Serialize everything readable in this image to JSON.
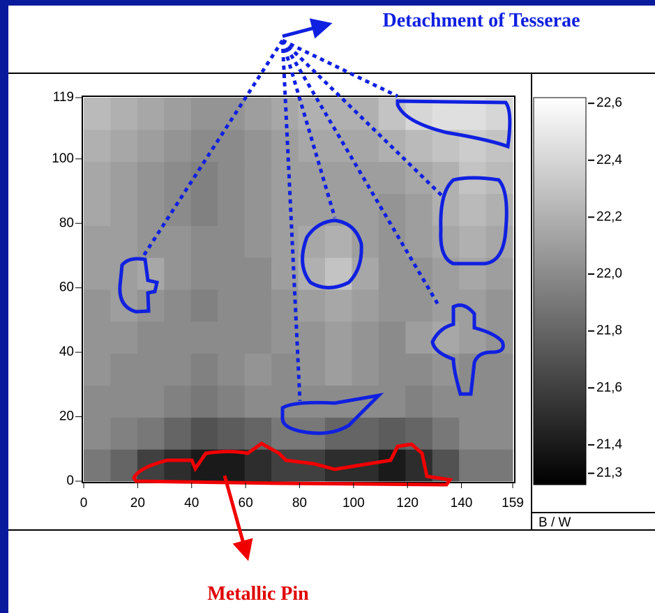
{
  "chart_data": {
    "type": "heatmap",
    "annotations": [
      "Detachment of Tesserae",
      "Metallic Pin"
    ],
    "xlim": [
      0,
      159
    ],
    "xticks": [
      0,
      20,
      40,
      60,
      80,
      100,
      120,
      140,
      159
    ],
    "ylim": [
      0,
      119
    ],
    "yticks": [
      0,
      20,
      40,
      60,
      80,
      100,
      119
    ],
    "colorbar_label": "B / W",
    "clim": [
      21.26,
      22.62
    ],
    "cticks": [
      {
        "value": 22.6,
        "label": "22,6"
      },
      {
        "value": 22.4,
        "label": "22,4"
      },
      {
        "value": 22.2,
        "label": "22,2"
      },
      {
        "value": 22.0,
        "label": "22,0"
      },
      {
        "value": 21.8,
        "label": "21,8"
      },
      {
        "value": 21.6,
        "label": "21,6"
      },
      {
        "value": 21.4,
        "label": "21,4"
      },
      {
        "value": 21.3,
        "label": "21,3"
      }
    ],
    "z": [
      [
        21.9,
        21.8,
        21.6,
        21.5,
        21.4,
        21.4,
        21.5,
        21.6,
        21.6,
        21.5,
        21.5,
        21.4,
        21.5,
        21.7,
        21.9,
        21.9
      ],
      [
        22.0,
        21.95,
        21.9,
        21.8,
        21.7,
        21.75,
        21.8,
        21.9,
        21.9,
        21.8,
        21.8,
        21.75,
        21.8,
        21.9,
        22.0,
        22.0
      ],
      [
        22.0,
        22.0,
        22.0,
        21.95,
        21.9,
        21.95,
        22.0,
        22.0,
        22.0,
        22.0,
        22.0,
        22.0,
        21.95,
        22.0,
        22.0,
        22.0
      ],
      [
        22.05,
        22.0,
        22.0,
        22.0,
        21.95,
        22.0,
        22.05,
        22.0,
        22.05,
        22.1,
        22.05,
        22.0,
        22.0,
        22.05,
        22.0,
        22.0
      ],
      [
        22.05,
        22.05,
        22.0,
        22.0,
        22.0,
        22.0,
        22.0,
        22.05,
        22.05,
        22.1,
        22.05,
        22.0,
        22.1,
        22.15,
        22.1,
        22.05
      ],
      [
        22.05,
        22.1,
        22.05,
        22.0,
        21.95,
        22.0,
        22.0,
        22.05,
        22.1,
        22.15,
        22.1,
        22.05,
        22.05,
        22.1,
        22.1,
        22.05
      ],
      [
        22.1,
        22.1,
        22.15,
        22.05,
        22.0,
        22.0,
        22.0,
        22.1,
        22.2,
        22.3,
        22.15,
        22.05,
        22.05,
        22.1,
        22.15,
        22.1
      ],
      [
        22.1,
        22.1,
        22.05,
        22.05,
        22.0,
        22.0,
        22.05,
        22.1,
        22.15,
        22.2,
        22.1,
        22.05,
        22.1,
        22.15,
        22.2,
        22.15
      ],
      [
        22.15,
        22.1,
        22.05,
        22.0,
        21.95,
        22.0,
        22.05,
        22.1,
        22.1,
        22.1,
        22.1,
        22.05,
        22.1,
        22.2,
        22.25,
        22.2
      ],
      [
        22.15,
        22.1,
        22.05,
        22.0,
        21.95,
        22.0,
        22.05,
        22.1,
        22.1,
        22.1,
        22.1,
        22.1,
        22.15,
        22.2,
        22.3,
        22.25
      ],
      [
        22.2,
        22.15,
        22.1,
        22.05,
        22.0,
        22.0,
        22.05,
        22.1,
        22.15,
        22.15,
        22.15,
        22.2,
        22.25,
        22.3,
        22.35,
        22.3
      ],
      [
        22.25,
        22.2,
        22.15,
        22.1,
        22.05,
        22.05,
        22.1,
        22.15,
        22.2,
        22.2,
        22.2,
        22.3,
        22.4,
        22.45,
        22.45,
        22.4
      ]
    ]
  }
}
